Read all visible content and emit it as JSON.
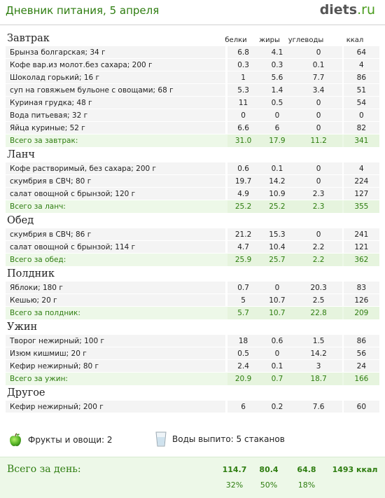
{
  "header": {
    "title": "Дневник питания, 5 апреля",
    "logo_main": "diets",
    "logo_domain": ".ru"
  },
  "columns": [
    "белки",
    "жиры",
    "углеводы",
    "ккал"
  ],
  "meals": [
    {
      "name": "Завтрак",
      "show_columns": true,
      "items": [
        {
          "name": "Брынза болгарская; 34 г",
          "b": "6.8",
          "f": "4.1",
          "c": "0",
          "kcal": "64"
        },
        {
          "name": "Кофе вар.из молот.без сахара; 200 г",
          "b": "0.3",
          "f": "0.3",
          "c": "0.1",
          "kcal": "4"
        },
        {
          "name": "Шоколад горький; 16 г",
          "b": "1",
          "f": "5.6",
          "c": "7.7",
          "kcal": "86"
        },
        {
          "name": "суп на говяжьем бульоне с овощами; 68 г",
          "b": "5.3",
          "f": "1.4",
          "c": "3.4",
          "kcal": "51"
        },
        {
          "name": "Куриная грудка; 48 г",
          "b": "11",
          "f": "0.5",
          "c": "0",
          "kcal": "54"
        },
        {
          "name": "Вода питьевая; 32 г",
          "b": "0",
          "f": "0",
          "c": "0",
          "kcal": "0"
        },
        {
          "name": "Яйца куриные; 52 г",
          "b": "6.6",
          "f": "6",
          "c": "0",
          "kcal": "82"
        }
      ],
      "total": {
        "label": "Всего за завтрак:",
        "b": "31.0",
        "f": "17.9",
        "c": "11.2",
        "kcal": "341"
      }
    },
    {
      "name": "Ланч",
      "show_columns": false,
      "items": [
        {
          "name": "Кофе растворимый, без сахара; 200 г",
          "b": "0.6",
          "f": "0.1",
          "c": "0",
          "kcal": "4"
        },
        {
          "name": "скумбрия в СВЧ; 80 г",
          "b": "19.7",
          "f": "14.2",
          "c": "0",
          "kcal": "224"
        },
        {
          "name": "салат овощной с брынзой; 120 г",
          "b": "4.9",
          "f": "10.9",
          "c": "2.3",
          "kcal": "127"
        }
      ],
      "total": {
        "label": "Всего за ланч:",
        "b": "25.2",
        "f": "25.2",
        "c": "2.3",
        "kcal": "355"
      }
    },
    {
      "name": "Обед",
      "show_columns": false,
      "items": [
        {
          "name": "скумбрия в СВЧ; 86 г",
          "b": "21.2",
          "f": "15.3",
          "c": "0",
          "kcal": "241"
        },
        {
          "name": "салат овощной с брынзой; 114 г",
          "b": "4.7",
          "f": "10.4",
          "c": "2.2",
          "kcal": "121"
        }
      ],
      "total": {
        "label": "Всего за обед:",
        "b": "25.9",
        "f": "25.7",
        "c": "2.2",
        "kcal": "362"
      }
    },
    {
      "name": "Полдник",
      "show_columns": false,
      "items": [
        {
          "name": "Яблоки; 180 г",
          "b": "0.7",
          "f": "0",
          "c": "20.3",
          "kcal": "83"
        },
        {
          "name": "Кешью; 20 г",
          "b": "5",
          "f": "10.7",
          "c": "2.5",
          "kcal": "126"
        }
      ],
      "total": {
        "label": "Всего за полдник:",
        "b": "5.7",
        "f": "10.7",
        "c": "22.8",
        "kcal": "209"
      }
    },
    {
      "name": "Ужин",
      "show_columns": false,
      "items": [
        {
          "name": "Творог нежирный; 100 г",
          "b": "18",
          "f": "0.6",
          "c": "1.5",
          "kcal": "86"
        },
        {
          "name": "Изюм кишмиш; 20 г",
          "b": "0.5",
          "f": "0",
          "c": "14.2",
          "kcal": "56"
        },
        {
          "name": "Кефир нежирный; 80 г",
          "b": "2.4",
          "f": "0.1",
          "c": "3",
          "kcal": "24"
        }
      ],
      "total": {
        "label": "Всего за ужин:",
        "b": "20.9",
        "f": "0.7",
        "c": "18.7",
        "kcal": "166"
      }
    },
    {
      "name": "Другое",
      "show_columns": false,
      "items": [
        {
          "name": "Кефир нежирный; 200 г",
          "b": "6",
          "f": "0.2",
          "c": "7.6",
          "kcal": "60"
        }
      ],
      "total": null
    }
  ],
  "extras": {
    "fruits": "Фрукты и овощи: 2",
    "water": "Воды выпито: 5 стаканов",
    "fruit_icon": "green-apple-icon",
    "water_icon": "water-glass-icon"
  },
  "day_total": {
    "label": "Всего за день:",
    "b": "114.7",
    "f": "80.4",
    "c": "64.8",
    "kcal": "1493 ккал",
    "b_pct": "32%",
    "f_pct": "50%",
    "c_pct": "18%"
  },
  "colors": {
    "green": "#2e7d10",
    "total_bg": "#edf8e8",
    "row_bg": "#f4f4f4"
  }
}
